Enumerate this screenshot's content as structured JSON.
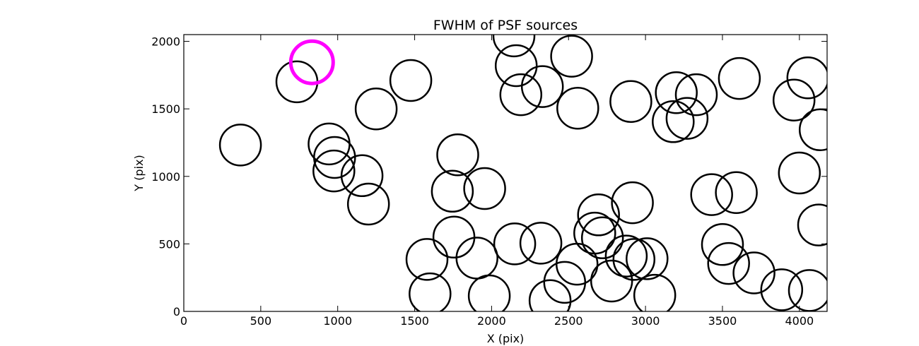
{
  "chart_data": {
    "type": "scatter",
    "title": "FWHM of PSF sources",
    "xlabel": "X (pix)",
    "ylabel": "Y (pix)",
    "xlim": [
      0,
      4180
    ],
    "ylim": [
      0,
      2050
    ],
    "xticks": [
      "0",
      "500",
      "1000",
      "1500",
      "2000",
      "2500",
      "3000",
      "3500",
      "4000"
    ],
    "yticks": [
      "0",
      "500",
      "1000",
      "1500",
      "2000"
    ],
    "grid": false,
    "marker": "open circle",
    "series": [
      {
        "color": "#000000",
        "points": [
          [
            368,
            1232
          ],
          [
            735,
            1700
          ],
          [
            944,
            1240
          ],
          [
            980,
            1140
          ],
          [
            975,
            1040
          ],
          [
            1158,
            1005
          ],
          [
            1200,
            795
          ],
          [
            1250,
            1500
          ],
          [
            1475,
            1710
          ],
          [
            1580,
            385
          ],
          [
            1600,
            130
          ],
          [
            1780,
            1160
          ],
          [
            1745,
            890
          ],
          [
            1755,
            550
          ],
          [
            1905,
            395
          ],
          [
            1955,
            910
          ],
          [
            1985,
            115
          ],
          [
            2145,
            2040
          ],
          [
            2160,
            1820
          ],
          [
            2190,
            1605
          ],
          [
            2330,
            1665
          ],
          [
            2150,
            500
          ],
          [
            2320,
            505
          ],
          [
            2380,
            80
          ],
          [
            2475,
            215
          ],
          [
            2520,
            1890
          ],
          [
            2560,
            1505
          ],
          [
            2555,
            350
          ],
          [
            2670,
            580
          ],
          [
            2695,
            715
          ],
          [
            2720,
            545
          ],
          [
            2780,
            225
          ],
          [
            2875,
            410
          ],
          [
            2905,
            1555
          ],
          [
            2925,
            385
          ],
          [
            2915,
            805
          ],
          [
            3010,
            390
          ],
          [
            3060,
            120
          ],
          [
            3180,
            1405
          ],
          [
            3200,
            1620
          ],
          [
            3270,
            1430
          ],
          [
            3330,
            1605
          ],
          [
            3430,
            865
          ],
          [
            3500,
            495
          ],
          [
            3540,
            355
          ],
          [
            3590,
            880
          ],
          [
            3610,
            1725
          ],
          [
            3705,
            285
          ],
          [
            3885,
            160
          ],
          [
            3965,
            1565
          ],
          [
            4000,
            1025
          ],
          [
            4055,
            1730
          ],
          [
            4065,
            155
          ],
          [
            4125,
            640
          ],
          [
            4135,
            1345
          ]
        ]
      },
      {
        "color": "#ff00ff",
        "points": [
          [
            833,
            1845
          ]
        ]
      }
    ]
  }
}
